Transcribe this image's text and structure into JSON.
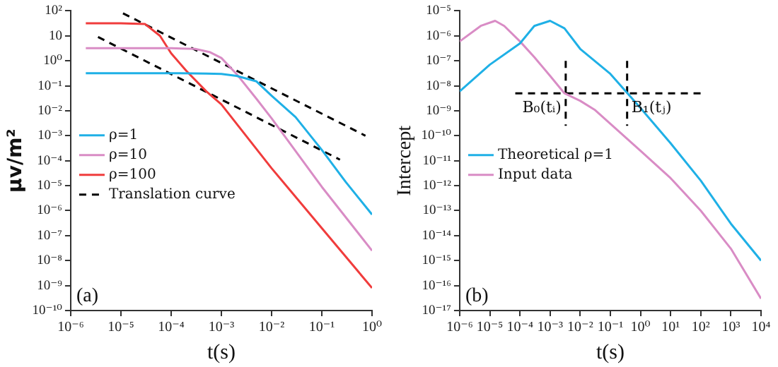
{
  "chart_data": [
    {
      "type": "line",
      "xlabel": "t(s)",
      "ylabel": "μv/m²",
      "log": "xy",
      "grid": false,
      "legend": "left",
      "marker": "none",
      "xlim": [
        1e-06,
        1
      ],
      "ylim": [
        1e-10,
        100
      ],
      "xticks": [
        {
          "value": 1e-06,
          "label": "10⁻⁶"
        },
        {
          "value": 1e-05,
          "label": "10⁻⁵"
        },
        {
          "value": 0.0001,
          "label": "10⁻⁴"
        },
        {
          "value": 0.001,
          "label": "10⁻³"
        },
        {
          "value": 0.01,
          "label": "10⁻²"
        },
        {
          "value": 0.1,
          "label": "10⁻¹"
        },
        {
          "value": 1,
          "label": "10⁰"
        }
      ],
      "yticks": [
        {
          "value": 1e-10,
          "label": "10⁻¹⁰"
        },
        {
          "value": 1e-09,
          "label": "10⁻⁹"
        },
        {
          "value": 1e-08,
          "label": "10⁻⁸"
        },
        {
          "value": 1e-07,
          "label": "10⁻⁷"
        },
        {
          "value": 1e-06,
          "label": "10⁻⁶"
        },
        {
          "value": 1e-05,
          "label": "10⁻⁵"
        },
        {
          "value": 0.0001,
          "label": "10⁻⁴"
        },
        {
          "value": 0.001,
          "label": "10⁻³"
        },
        {
          "value": 0.01,
          "label": "10⁻²"
        },
        {
          "value": 0.1,
          "label": "10⁻¹"
        },
        {
          "value": 1,
          "label": "10⁰"
        },
        10,
        {
          "value": 100,
          "label": "10²"
        }
      ],
      "annotations": [
        "(a)"
      ],
      "series": [
        {
          "name": "ρ=1",
          "color": "#1fb0e6",
          "line_style": "solid",
          "x": [
            2e-06,
            1e-05,
            0.0001,
            0.0005,
            0.001,
            0.002,
            0.005,
            0.01,
            0.03,
            0.1,
            0.3,
            1
          ],
          "values": [
            0.32,
            0.32,
            0.32,
            0.31,
            0.3,
            0.25,
            0.15,
            0.04,
            0.0056,
            0.00027,
            1.4e-05,
            7e-07
          ]
        },
        {
          "name": "ρ=10",
          "color": "#d98cc5",
          "line_style": "solid",
          "x": [
            2e-06,
            1e-05,
            0.0001,
            0.0003,
            0.0006,
            0.001,
            0.002,
            0.005,
            0.01,
            0.1,
            1
          ],
          "values": [
            3.2,
            3.2,
            3.2,
            3.0,
            2.2,
            1.3,
            0.3,
            0.03,
            0.005,
            9e-06,
            2.5e-08
          ]
        },
        {
          "name": "ρ=100",
          "color": "#f03c3c",
          "line_style": "solid",
          "x": [
            2e-06,
            1e-05,
            3e-05,
            6e-05,
            0.0001,
            0.0002,
            0.0005,
            0.001,
            0.01,
            0.1,
            1
          ],
          "values": [
            32,
            32,
            30,
            10,
            2,
            0.4,
            0.06,
            0.018,
            5e-05,
            2e-07,
            8e-10
          ]
        },
        {
          "name": "Translation curve",
          "color": "#000000",
          "line_style": "dashed",
          "x": [
            1.1e-05,
            0.74
          ],
          "values": [
            80,
            0.001
          ]
        },
        {
          "color": "#000000",
          "line_style": "dashed",
          "x": [
            3.5e-06,
            0.23
          ],
          "values": [
            9,
            0.00011
          ]
        }
      ]
    },
    {
      "type": "line",
      "xlabel": "t(s)",
      "ylabel": "Intercept",
      "log": "xy",
      "grid": false,
      "legend": "left",
      "marker": "none",
      "xlim": [
        1e-06,
        10000.0
      ],
      "ylim": [
        1e-17,
        1e-05
      ],
      "xticks": [
        {
          "value": 1e-06,
          "label": "10⁻⁶"
        },
        {
          "value": 1e-05,
          "label": "10⁻⁵"
        },
        {
          "value": 0.0001,
          "label": "10⁻⁴"
        },
        {
          "value": 0.001,
          "label": "10⁻³"
        },
        {
          "value": 0.01,
          "label": "10⁻²"
        },
        {
          "value": 0.1,
          "label": "10⁻¹"
        },
        {
          "value": 1,
          "label": "10⁰"
        },
        {
          "value": 10,
          "label": "10¹"
        },
        {
          "value": 100,
          "label": "10²"
        },
        {
          "value": 1000,
          "label": "10³"
        },
        {
          "value": 10000,
          "label": "10⁴"
        }
      ],
      "yticks": [
        {
          "value": 1e-17,
          "label": "10⁻¹⁷"
        },
        {
          "value": 1e-16,
          "label": "10⁻¹⁶"
        },
        {
          "value": 1e-15,
          "label": "10⁻¹⁵"
        },
        {
          "value": 1e-14,
          "label": "10⁻¹⁴"
        },
        {
          "value": 1e-13,
          "label": "10⁻¹³"
        },
        {
          "value": 1e-12,
          "label": "10⁻¹²"
        },
        {
          "value": 1e-11,
          "label": "10⁻¹¹"
        },
        {
          "value": 1e-10,
          "label": "10⁻¹⁰"
        },
        {
          "value": 1e-09,
          "label": "10⁻⁹"
        },
        {
          "value": 1e-08,
          "label": "10⁻⁸"
        },
        {
          "value": 1e-07,
          "label": "10⁻⁷"
        },
        {
          "value": 1e-06,
          "label": "10⁻⁶"
        },
        {
          "value": 1e-05,
          "label": "10⁻⁵"
        }
      ],
      "annotations": [
        "(b)",
        {
          "text": "B₀(tᵢ)",
          "x": 0.0033,
          "y": 5e-09
        },
        {
          "text": "B₁(tⱼ)",
          "x": 0.36,
          "y": 5e-09
        }
      ],
      "series": [
        {
          "name": "Theoretical ρ=1",
          "color": "#1fb0e6",
          "line_style": "solid",
          "x": [
            1e-06,
            1e-05,
            0.0001,
            0.0003,
            0.001,
            0.003,
            0.01,
            0.1,
            1,
            10,
            100,
            1000,
            10000
          ],
          "values": [
            6e-09,
            7e-08,
            5e-07,
            2.5e-06,
            4e-06,
            2e-06,
            3e-07,
            3e-08,
            1.3e-09,
            5e-11,
            1.6e-12,
            3e-14,
            1e-15
          ]
        },
        {
          "name": "Input data",
          "color": "#d98cc5",
          "line_style": "solid",
          "x": [
            1e-06,
            5e-06,
            1.5e-05,
            3e-05,
            0.0001,
            0.0003,
            0.001,
            0.003,
            0.01,
            0.03,
            0.1,
            1,
            10,
            100,
            1000,
            10000
          ],
          "values": [
            6e-07,
            2.5e-06,
            4e-06,
            2.5e-06,
            6e-07,
            1.4e-07,
            2.5e-08,
            5e-09,
            2.5e-09,
            1.1e-09,
            3e-10,
            2.5e-11,
            2e-12,
            1e-13,
            3e-15,
            3e-17
          ]
        },
        {
          "color": "#000000",
          "line_style": "dashed",
          "x": [
            7e-05,
            100
          ],
          "values": [
            5e-09,
            5e-09
          ]
        },
        {
          "color": "#000000",
          "line_style": "dashed",
          "x": [
            0.0033,
            0.0033
          ],
          "values": [
            1e-07,
            2.5e-10
          ]
        },
        {
          "color": "#000000",
          "line_style": "dashed",
          "x": [
            0.36,
            0.36
          ],
          "values": [
            1e-07,
            2.5e-10
          ]
        }
      ]
    }
  ]
}
